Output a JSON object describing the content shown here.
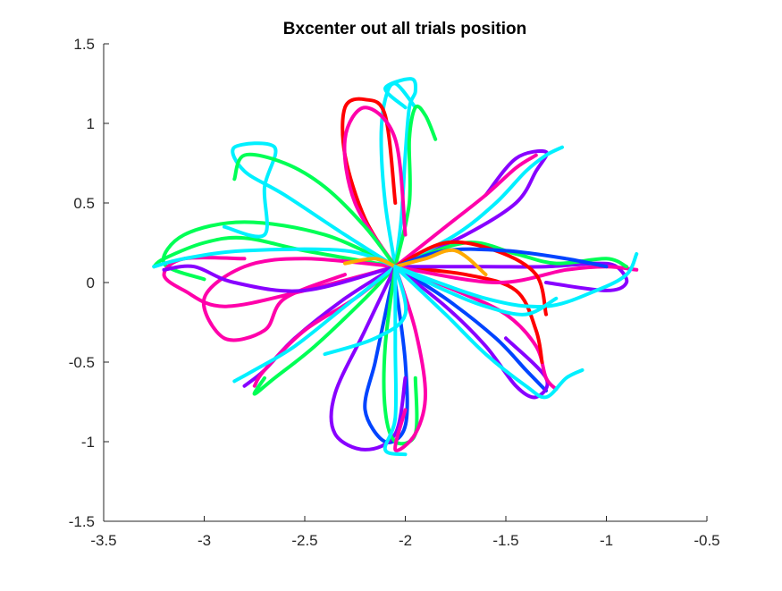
{
  "chart_data": {
    "type": "line",
    "title": "Bxcenter out all trials position",
    "xlabel": "",
    "ylabel": "",
    "xlim": [
      -3.5,
      -0.5
    ],
    "ylim": [
      -1.5,
      1.5
    ],
    "grid": false,
    "legend": "none",
    "x_ticks": [
      "-3.5",
      "-3",
      "-2.5",
      "-2",
      "-1.5",
      "-1",
      "-0.5"
    ],
    "y_ticks": [
      "1.5",
      "1",
      "0.5",
      "0",
      "-0.5",
      "-1",
      "-1.5"
    ],
    "colors": [
      "#ff00aa",
      "#8800ff",
      "#00ff55",
      "#00f0ff",
      "#ff0000",
      "#0044ff",
      "#ffaa00"
    ],
    "series": [
      {
        "color": "#00f0ff",
        "points": [
          [
            -2.05,
            0.1
          ],
          [
            -2.02,
            0.4
          ],
          [
            -2.0,
            0.8
          ],
          [
            -1.98,
            1.1
          ],
          [
            -1.95,
            1.2
          ],
          [
            -1.97,
            1.28
          ],
          [
            -2.1,
            1.22
          ],
          [
            -2.0,
            1.1
          ]
        ]
      },
      {
        "color": "#00f0ff",
        "points": [
          [
            -2.05,
            0.1
          ],
          [
            -2.1,
            0.5
          ],
          [
            -2.12,
            0.9
          ],
          [
            -2.1,
            1.15
          ],
          [
            -2.05,
            1.25
          ],
          [
            -1.95,
            1.1
          ]
        ]
      },
      {
        "color": "#ff0000",
        "points": [
          [
            -2.05,
            0.1
          ],
          [
            -2.2,
            0.4
          ],
          [
            -2.3,
            0.8
          ],
          [
            -2.3,
            1.1
          ],
          [
            -2.2,
            1.15
          ],
          [
            -2.1,
            1.05
          ],
          [
            -2.05,
            0.5
          ]
        ]
      },
      {
        "color": "#00ff55",
        "points": [
          [
            -2.05,
            0.1
          ],
          [
            -1.98,
            0.5
          ],
          [
            -1.98,
            0.9
          ],
          [
            -1.95,
            1.1
          ],
          [
            -1.9,
            1.05
          ],
          [
            -1.85,
            0.9
          ]
        ]
      },
      {
        "color": "#ff00aa",
        "points": [
          [
            -2.05,
            0.1
          ],
          [
            -2.25,
            0.5
          ],
          [
            -2.3,
            0.9
          ],
          [
            -2.2,
            1.1
          ],
          [
            -2.05,
            0.9
          ],
          [
            -2.0,
            0.3
          ]
        ]
      },
      {
        "color": "#00ff55",
        "points": [
          [
            -2.05,
            0.1
          ],
          [
            -2.5,
            0.2
          ],
          [
            -2.8,
            0.28
          ],
          [
            -3.0,
            0.25
          ],
          [
            -3.2,
            0.15
          ],
          [
            -3.25,
            0.1
          ]
        ]
      },
      {
        "color": "#00ff55",
        "points": [
          [
            -2.05,
            0.1
          ],
          [
            -2.4,
            0.3
          ],
          [
            -2.8,
            0.38
          ],
          [
            -3.1,
            0.3
          ],
          [
            -3.2,
            0.12
          ],
          [
            -3.0,
            0.02
          ]
        ]
      },
      {
        "color": "#ff00aa",
        "points": [
          [
            -2.05,
            0.1
          ],
          [
            -2.5,
            -0.05
          ],
          [
            -2.9,
            -0.15
          ],
          [
            -3.1,
            -0.05
          ],
          [
            -3.2,
            0.05
          ],
          [
            -3.1,
            0.15
          ],
          [
            -2.8,
            0.15
          ]
        ]
      },
      {
        "color": "#ff00aa",
        "points": [
          [
            -2.05,
            0.1
          ],
          [
            -2.5,
            0.15
          ],
          [
            -2.8,
            0.1
          ],
          [
            -3.0,
            -0.1
          ],
          [
            -2.9,
            -0.35
          ],
          [
            -2.7,
            -0.3
          ],
          [
            -2.6,
            -0.1
          ],
          [
            -2.3,
            0.05
          ]
        ]
      },
      {
        "color": "#8800ff",
        "points": [
          [
            -2.05,
            0.1
          ],
          [
            -2.5,
            -0.05
          ],
          [
            -2.85,
            0.0
          ],
          [
            -3.05,
            0.1
          ],
          [
            -3.2,
            0.08
          ]
        ]
      },
      {
        "color": "#00f0ff",
        "points": [
          [
            -2.05,
            0.1
          ],
          [
            -2.3,
            0.2
          ],
          [
            -2.8,
            0.2
          ],
          [
            -3.1,
            0.15
          ],
          [
            -3.25,
            0.1
          ]
        ]
      },
      {
        "color": "#00f0ff",
        "points": [
          [
            -2.05,
            0.1
          ],
          [
            -2.3,
            0.3
          ],
          [
            -2.6,
            0.55
          ],
          [
            -2.8,
            0.7
          ],
          [
            -2.85,
            0.85
          ],
          [
            -2.65,
            0.85
          ],
          [
            -2.7,
            0.6
          ],
          [
            -2.7,
            0.3
          ],
          [
            -2.9,
            0.35
          ]
        ]
      },
      {
        "color": "#00ff55",
        "points": [
          [
            -2.05,
            0.1
          ],
          [
            -2.2,
            0.35
          ],
          [
            -2.4,
            0.6
          ],
          [
            -2.6,
            0.75
          ],
          [
            -2.8,
            0.8
          ],
          [
            -2.85,
            0.65
          ]
        ]
      },
      {
        "color": "#8800ff",
        "points": [
          [
            -2.05,
            0.1
          ],
          [
            -2.3,
            -0.1
          ],
          [
            -2.55,
            -0.35
          ],
          [
            -2.7,
            -0.55
          ],
          [
            -2.8,
            -0.65
          ]
        ]
      },
      {
        "color": "#ff00aa",
        "points": [
          [
            -2.05,
            0.1
          ],
          [
            -2.25,
            -0.1
          ],
          [
            -2.5,
            -0.3
          ],
          [
            -2.7,
            -0.55
          ],
          [
            -2.75,
            -0.65
          ]
        ]
      },
      {
        "color": "#00ff55",
        "points": [
          [
            -2.05,
            0.1
          ],
          [
            -2.2,
            -0.1
          ],
          [
            -2.45,
            -0.4
          ],
          [
            -2.65,
            -0.6
          ],
          [
            -2.75,
            -0.7
          ],
          [
            -2.7,
            -0.6
          ]
        ]
      },
      {
        "color": "#00f0ff",
        "points": [
          [
            -2.05,
            0.1
          ],
          [
            -2.3,
            -0.15
          ],
          [
            -2.55,
            -0.4
          ],
          [
            -2.75,
            -0.55
          ],
          [
            -2.85,
            -0.62
          ]
        ]
      },
      {
        "color": "#0044ff",
        "points": [
          [
            -2.05,
            0.1
          ],
          [
            -2.1,
            -0.2
          ],
          [
            -2.15,
            -0.5
          ],
          [
            -2.2,
            -0.8
          ],
          [
            -2.1,
            -1.0
          ],
          [
            -2.0,
            -0.9
          ],
          [
            -2.0,
            -0.5
          ],
          [
            -2.05,
            0.0
          ]
        ]
      },
      {
        "color": "#8800ff",
        "points": [
          [
            -2.05,
            0.1
          ],
          [
            -2.2,
            -0.3
          ],
          [
            -2.35,
            -0.7
          ],
          [
            -2.35,
            -0.95
          ],
          [
            -2.2,
            -1.05
          ],
          [
            -2.05,
            -0.95
          ],
          [
            -2.0,
            -0.6
          ]
        ]
      },
      {
        "color": "#00ff55",
        "points": [
          [
            -2.05,
            0.1
          ],
          [
            -2.1,
            -0.4
          ],
          [
            -2.1,
            -0.8
          ],
          [
            -2.05,
            -1.0
          ],
          [
            -1.95,
            -0.95
          ],
          [
            -1.95,
            -0.6
          ]
        ]
      },
      {
        "color": "#ff00aa",
        "points": [
          [
            -2.05,
            0.1
          ],
          [
            -1.95,
            -0.3
          ],
          [
            -1.9,
            -0.7
          ],
          [
            -1.95,
            -0.95
          ],
          [
            -2.05,
            -1.05
          ],
          [
            -2.0,
            -0.8
          ]
        ]
      },
      {
        "color": "#00f0ff",
        "points": [
          [
            -2.05,
            0.1
          ],
          [
            -2.05,
            -0.4
          ],
          [
            -2.05,
            -0.85
          ],
          [
            -2.1,
            -1.05
          ],
          [
            -2.0,
            -1.08
          ]
        ]
      },
      {
        "color": "#0044ff",
        "points": [
          [
            -2.05,
            0.1
          ],
          [
            -1.8,
            -0.1
          ],
          [
            -1.55,
            -0.35
          ],
          [
            -1.4,
            -0.55
          ],
          [
            -1.3,
            -0.68
          ]
        ]
      },
      {
        "color": "#8800ff",
        "points": [
          [
            -2.05,
            0.1
          ],
          [
            -1.8,
            -0.15
          ],
          [
            -1.6,
            -0.4
          ],
          [
            -1.45,
            -0.65
          ],
          [
            -1.35,
            -0.72
          ],
          [
            -1.3,
            -0.6
          ],
          [
            -1.5,
            -0.35
          ]
        ]
      },
      {
        "color": "#ff00aa",
        "points": [
          [
            -2.05,
            0.1
          ],
          [
            -1.75,
            -0.05
          ],
          [
            -1.5,
            -0.2
          ],
          [
            -1.35,
            -0.4
          ],
          [
            -1.3,
            -0.6
          ],
          [
            -1.25,
            -0.67
          ]
        ]
      },
      {
        "color": "#00f0ff",
        "points": [
          [
            -2.05,
            0.1
          ],
          [
            -1.8,
            -0.2
          ],
          [
            -1.6,
            -0.45
          ],
          [
            -1.4,
            -0.65
          ],
          [
            -1.3,
            -0.72
          ],
          [
            -1.2,
            -0.6
          ],
          [
            -1.12,
            -0.55
          ]
        ]
      },
      {
        "color": "#ff0000",
        "points": [
          [
            -2.05,
            0.1
          ],
          [
            -1.7,
            0.05
          ],
          [
            -1.45,
            -0.05
          ],
          [
            -1.35,
            -0.3
          ],
          [
            -1.32,
            -0.5
          ]
        ]
      },
      {
        "color": "#8800ff",
        "points": [
          [
            -2.05,
            0.1
          ],
          [
            -1.7,
            0.3
          ],
          [
            -1.45,
            0.5
          ],
          [
            -1.35,
            0.7
          ],
          [
            -1.3,
            0.82
          ],
          [
            -1.45,
            0.78
          ],
          [
            -1.6,
            0.55
          ]
        ]
      },
      {
        "color": "#00f0ff",
        "points": [
          [
            -2.05,
            0.1
          ],
          [
            -1.75,
            0.3
          ],
          [
            -1.55,
            0.5
          ],
          [
            -1.4,
            0.7
          ],
          [
            -1.3,
            0.8
          ],
          [
            -1.22,
            0.85
          ]
        ]
      },
      {
        "color": "#ff00aa",
        "points": [
          [
            -2.05,
            0.1
          ],
          [
            -1.8,
            0.35
          ],
          [
            -1.6,
            0.55
          ],
          [
            -1.45,
            0.72
          ],
          [
            -1.35,
            0.8
          ]
        ]
      },
      {
        "color": "#8800ff",
        "points": [
          [
            -2.05,
            0.1
          ],
          [
            -1.6,
            0.1
          ],
          [
            -1.3,
            0.1
          ],
          [
            -1.05,
            0.12
          ],
          [
            -0.95,
            0.1
          ],
          [
            -0.9,
            0.0
          ],
          [
            -1.0,
            -0.05
          ],
          [
            -1.3,
            0.0
          ]
        ]
      },
      {
        "color": "#ff00aa",
        "points": [
          [
            -2.05,
            0.1
          ],
          [
            -1.55,
            0.0
          ],
          [
            -1.2,
            0.08
          ],
          [
            -1.0,
            0.1
          ],
          [
            -0.85,
            0.08
          ]
        ]
      },
      {
        "color": "#00f0ff",
        "points": [
          [
            -2.05,
            0.1
          ],
          [
            -1.6,
            -0.1
          ],
          [
            -1.3,
            -0.15
          ],
          [
            -1.05,
            -0.05
          ],
          [
            -0.9,
            0.05
          ],
          [
            -0.85,
            0.18
          ]
        ]
      },
      {
        "color": "#00ff55",
        "points": [
          [
            -2.05,
            0.1
          ],
          [
            -1.7,
            0.25
          ],
          [
            -1.45,
            0.18
          ],
          [
            -1.25,
            0.12
          ],
          [
            -1.0,
            0.15
          ],
          [
            -0.9,
            0.1
          ]
        ]
      },
      {
        "color": "#ff0000",
        "points": [
          [
            -2.05,
            0.1
          ],
          [
            -1.8,
            0.25
          ],
          [
            -1.55,
            0.2
          ],
          [
            -1.35,
            0.05
          ],
          [
            -1.3,
            -0.2
          ]
        ]
      },
      {
        "color": "#0044ff",
        "points": [
          [
            -2.05,
            0.1
          ],
          [
            -1.8,
            0.2
          ],
          [
            -1.5,
            0.2
          ],
          [
            -1.2,
            0.15
          ],
          [
            -1.0,
            0.1
          ]
        ]
      },
      {
        "color": "#ffaa00",
        "points": [
          [
            -2.05,
            0.1
          ],
          [
            -1.9,
            0.15
          ],
          [
            -1.75,
            0.2
          ],
          [
            -1.6,
            0.05
          ]
        ]
      },
      {
        "color": "#ffaa00",
        "points": [
          [
            -2.05,
            0.1
          ],
          [
            -2.15,
            0.15
          ],
          [
            -2.3,
            0.12
          ]
        ]
      },
      {
        "color": "#00f0ff",
        "points": [
          [
            -2.05,
            0.1
          ],
          [
            -1.8,
            -0.05
          ],
          [
            -1.6,
            -0.15
          ],
          [
            -1.4,
            -0.2
          ],
          [
            -1.25,
            -0.1
          ]
        ]
      },
      {
        "color": "#00f0ff",
        "points": [
          [
            -2.05,
            0.1
          ],
          [
            -2.0,
            -0.2
          ],
          [
            -2.15,
            -0.35
          ],
          [
            -2.4,
            -0.45
          ]
        ]
      }
    ]
  }
}
